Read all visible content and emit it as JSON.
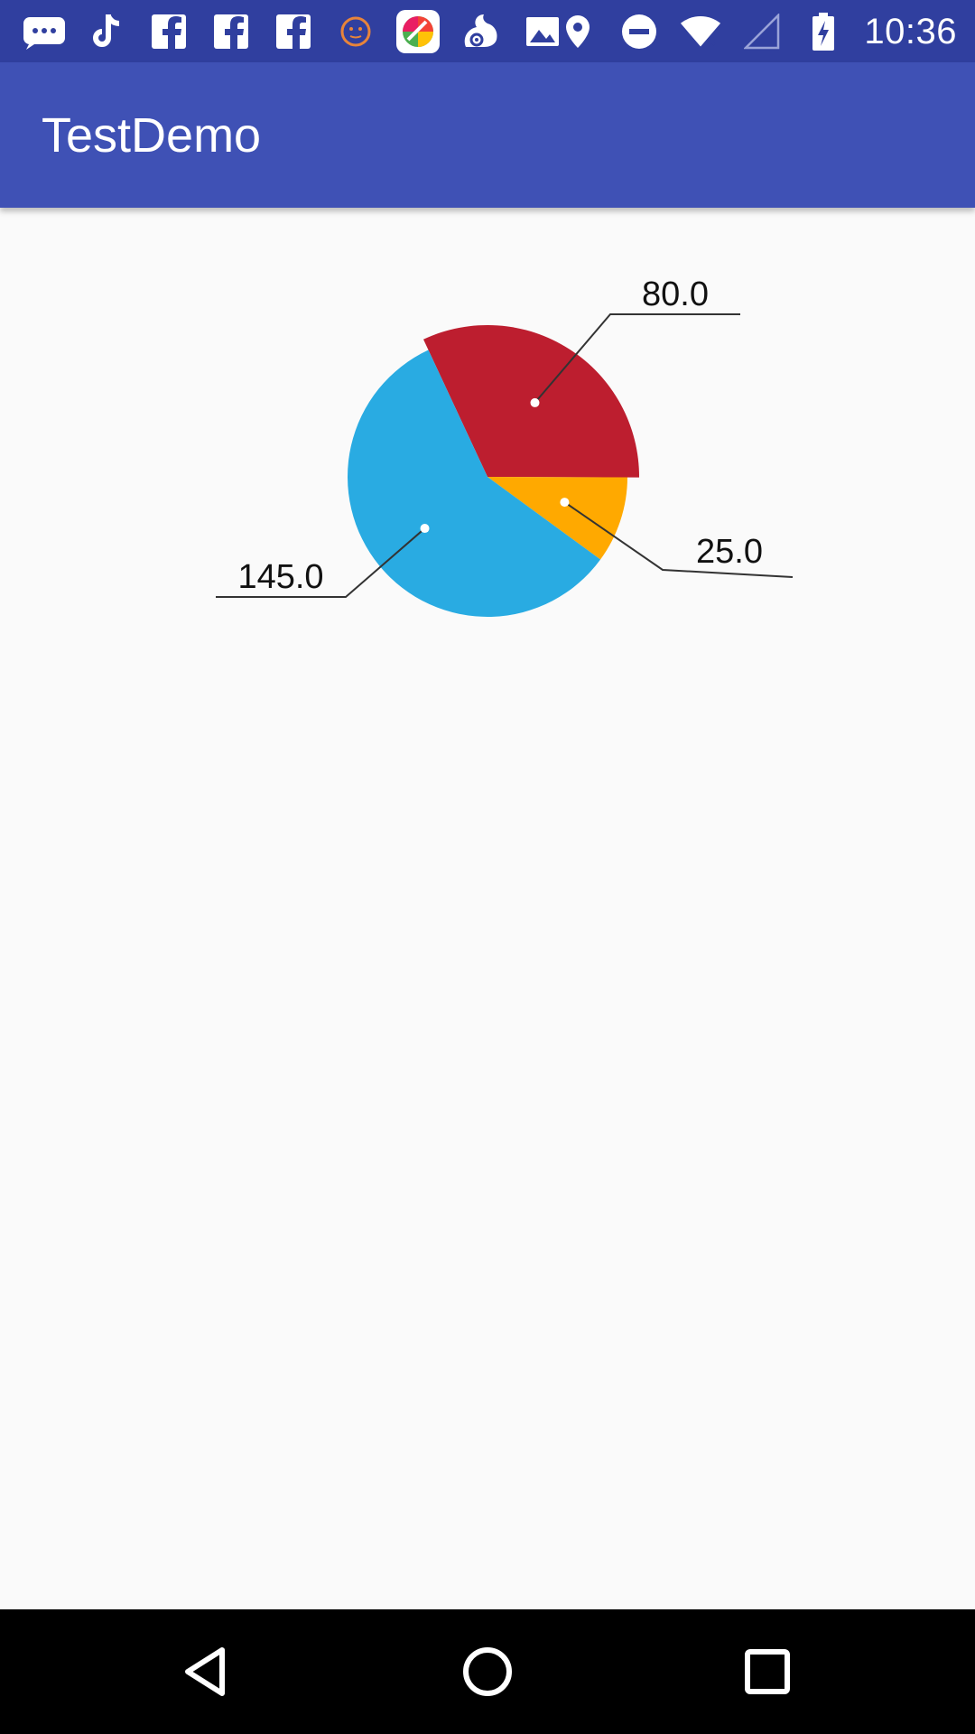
{
  "status_bar": {
    "time": "10:36",
    "left_icons": [
      "messaging-icon",
      "tiktok-icon",
      "facebook-icon",
      "facebook-icon",
      "facebook-icon",
      "emoji-icon",
      "app-store-icon",
      "uc-browser-icon",
      "gallery-icon"
    ],
    "right_icons": [
      "location-icon",
      "do-not-disturb-icon",
      "wifi-icon",
      "cellular-signal-icon",
      "battery-charging-icon"
    ]
  },
  "app_bar": {
    "title": "TestDemo"
  },
  "chart_data": {
    "type": "pie",
    "slices": [
      {
        "label": "80.0",
        "value": 80.0,
        "color": "#bd1e2f"
      },
      {
        "label": "25.0",
        "value": 25.0,
        "color": "#ffa900"
      },
      {
        "label": "145.0",
        "value": 145.0,
        "color": "#29abe2"
      }
    ],
    "title": "",
    "legend": "none"
  },
  "nav_bar": {
    "buttons": [
      "back-icon",
      "home-icon",
      "recents-icon"
    ]
  },
  "colors": {
    "status_bar": "#303f9f",
    "app_bar": "#3f51b5",
    "background": "#fafafa"
  }
}
